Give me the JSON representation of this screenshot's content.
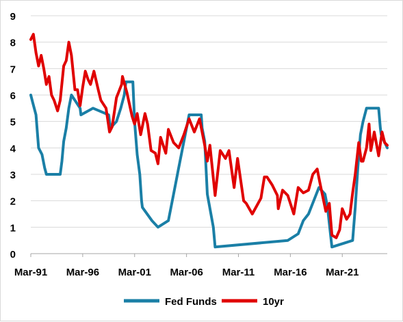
{
  "chart_data": {
    "type": "line",
    "title": "",
    "xlabel": "",
    "ylabel": "",
    "ylim": [
      0,
      9
    ],
    "xlim": [
      "1991-03",
      "2025-07"
    ],
    "y_ticks": [
      "0",
      "1",
      "2",
      "3",
      "4",
      "5",
      "6",
      "7",
      "8",
      "9"
    ],
    "x_ticks": [
      {
        "label": "Mar-91",
        "date": "1991-03"
      },
      {
        "label": "Mar-96",
        "date": "1996-03"
      },
      {
        "label": "Mar-01",
        "date": "2001-03"
      },
      {
        "label": "Mar-06",
        "date": "2006-03"
      },
      {
        "label": "Mar-11",
        "date": "2011-03"
      },
      {
        "label": "Mar-16",
        "date": "2016-03"
      },
      {
        "label": "Mar-21",
        "date": "2021-03"
      }
    ],
    "grid": "horizontal",
    "legend_position": "bottom",
    "series": [
      {
        "name": "Fed Funds",
        "color": "#1a7fa6",
        "points": [
          [
            "1991-03",
            6.0
          ],
          [
            "1991-05",
            5.75
          ],
          [
            "1991-09",
            5.25
          ],
          [
            "1991-12",
            4.0
          ],
          [
            "1992-04",
            3.75
          ],
          [
            "1992-07",
            3.25
          ],
          [
            "1992-09",
            3.0
          ],
          [
            "1993-06",
            3.0
          ],
          [
            "1994-01",
            3.0
          ],
          [
            "1994-03",
            3.5
          ],
          [
            "1994-05",
            4.25
          ],
          [
            "1994-08",
            4.75
          ],
          [
            "1994-11",
            5.5
          ],
          [
            "1995-02",
            6.0
          ],
          [
            "1995-07",
            5.75
          ],
          [
            "1995-12",
            5.5
          ],
          [
            "1996-01",
            5.25
          ],
          [
            "1997-03",
            5.5
          ],
          [
            "1998-09",
            5.25
          ],
          [
            "1998-11",
            4.75
          ],
          [
            "1999-06",
            5.0
          ],
          [
            "1999-11",
            5.5
          ],
          [
            "2000-03",
            6.0
          ],
          [
            "2000-05",
            6.5
          ],
          [
            "2001-01",
            6.5
          ],
          [
            "2001-03",
            5.0
          ],
          [
            "2001-06",
            3.75
          ],
          [
            "2001-09",
            3.0
          ],
          [
            "2001-11",
            2.0
          ],
          [
            "2001-12",
            1.75
          ],
          [
            "2002-11",
            1.25
          ],
          [
            "2003-06",
            1.0
          ],
          [
            "2004-06",
            1.25
          ],
          [
            "2004-12",
            2.25
          ],
          [
            "2005-06",
            3.25
          ],
          [
            "2005-12",
            4.25
          ],
          [
            "2006-06",
            5.25
          ],
          [
            "2007-08",
            5.25
          ],
          [
            "2007-09",
            4.75
          ],
          [
            "2007-12",
            4.25
          ],
          [
            "2008-03",
            2.25
          ],
          [
            "2008-10",
            1.0
          ],
          [
            "2008-12",
            0.25
          ],
          [
            "2015-12",
            0.5
          ],
          [
            "2016-12",
            0.75
          ],
          [
            "2017-06",
            1.25
          ],
          [
            "2017-12",
            1.5
          ],
          [
            "2018-06",
            2.0
          ],
          [
            "2018-12",
            2.5
          ],
          [
            "2019-07",
            2.25
          ],
          [
            "2019-10",
            1.75
          ],
          [
            "2020-03",
            0.25
          ],
          [
            "2022-03",
            0.5
          ],
          [
            "2022-06",
            1.75
          ],
          [
            "2022-09",
            3.25
          ],
          [
            "2022-12",
            4.5
          ],
          [
            "2023-03",
            5.0
          ],
          [
            "2023-07",
            5.5
          ],
          [
            "2024-09",
            5.5
          ],
          [
            "2024-11",
            4.75
          ],
          [
            "2024-12",
            4.5
          ],
          [
            "2025-07",
            4.0
          ]
        ]
      },
      {
        "name": "10yr",
        "color": "#e00000",
        "points": [
          [
            "1991-03",
            8.1
          ],
          [
            "1991-06",
            8.3
          ],
          [
            "1991-09",
            7.6
          ],
          [
            "1991-12",
            7.1
          ],
          [
            "1992-03",
            7.5
          ],
          [
            "1992-06",
            7.0
          ],
          [
            "1992-09",
            6.4
          ],
          [
            "1992-12",
            6.7
          ],
          [
            "1993-03",
            6.0
          ],
          [
            "1993-06",
            5.8
          ],
          [
            "1993-10",
            5.4
          ],
          [
            "1994-01",
            5.8
          ],
          [
            "1994-05",
            7.1
          ],
          [
            "1994-08",
            7.3
          ],
          [
            "1994-11",
            8.0
          ],
          [
            "1995-02",
            7.5
          ],
          [
            "1995-06",
            6.2
          ],
          [
            "1995-09",
            6.2
          ],
          [
            "1995-12",
            5.6
          ],
          [
            "1996-03",
            6.3
          ],
          [
            "1996-06",
            6.9
          ],
          [
            "1996-09",
            6.6
          ],
          [
            "1996-12",
            6.4
          ],
          [
            "1997-04",
            6.9
          ],
          [
            "1997-09",
            6.2
          ],
          [
            "1997-12",
            5.8
          ],
          [
            "1998-06",
            5.5
          ],
          [
            "1998-10",
            4.6
          ],
          [
            "1999-01",
            4.8
          ],
          [
            "1999-06",
            5.9
          ],
          [
            "1999-12",
            6.4
          ],
          [
            "2000-01",
            6.7
          ],
          [
            "2000-06",
            6.1
          ],
          [
            "2000-12",
            5.2
          ],
          [
            "2001-03",
            4.9
          ],
          [
            "2001-06",
            5.3
          ],
          [
            "2001-10",
            4.5
          ],
          [
            "2002-03",
            5.3
          ],
          [
            "2002-06",
            4.9
          ],
          [
            "2002-10",
            3.9
          ],
          [
            "2003-03",
            3.8
          ],
          [
            "2003-06",
            3.4
          ],
          [
            "2003-09",
            4.4
          ],
          [
            "2004-03",
            3.8
          ],
          [
            "2004-06",
            4.7
          ],
          [
            "2004-12",
            4.2
          ],
          [
            "2005-06",
            4.0
          ],
          [
            "2005-12",
            4.5
          ],
          [
            "2006-06",
            5.1
          ],
          [
            "2006-12",
            4.6
          ],
          [
            "2007-06",
            5.1
          ],
          [
            "2007-12",
            4.1
          ],
          [
            "2008-03",
            3.5
          ],
          [
            "2008-06",
            4.1
          ],
          [
            "2008-12",
            2.2
          ],
          [
            "2009-06",
            3.9
          ],
          [
            "2009-12",
            3.6
          ],
          [
            "2010-04",
            3.9
          ],
          [
            "2010-10",
            2.5
          ],
          [
            "2011-02",
            3.6
          ],
          [
            "2011-09",
            2.0
          ],
          [
            "2011-12",
            1.9
          ],
          [
            "2012-07",
            1.5
          ],
          [
            "2012-12",
            1.8
          ],
          [
            "2013-05",
            2.1
          ],
          [
            "2013-09",
            2.9
          ],
          [
            "2013-12",
            2.9
          ],
          [
            "2014-06",
            2.6
          ],
          [
            "2014-12",
            2.2
          ],
          [
            "2015-01",
            1.7
          ],
          [
            "2015-06",
            2.4
          ],
          [
            "2015-12",
            2.2
          ],
          [
            "2016-07",
            1.5
          ],
          [
            "2016-12",
            2.5
          ],
          [
            "2017-06",
            2.3
          ],
          [
            "2017-12",
            2.4
          ],
          [
            "2018-05",
            3.0
          ],
          [
            "2018-10",
            3.2
          ],
          [
            "2019-01",
            2.7
          ],
          [
            "2019-08",
            1.6
          ],
          [
            "2019-12",
            1.9
          ],
          [
            "2020-03",
            0.7
          ],
          [
            "2020-08",
            0.6
          ],
          [
            "2020-12",
            0.9
          ],
          [
            "2021-03",
            1.7
          ],
          [
            "2021-08",
            1.3
          ],
          [
            "2021-12",
            1.5
          ],
          [
            "2022-03",
            2.3
          ],
          [
            "2022-06",
            3.0
          ],
          [
            "2022-10",
            4.2
          ],
          [
            "2023-01",
            3.5
          ],
          [
            "2023-03",
            3.5
          ],
          [
            "2023-07",
            4.0
          ],
          [
            "2023-10",
            4.9
          ],
          [
            "2023-12",
            3.9
          ],
          [
            "2024-04",
            4.6
          ],
          [
            "2024-09",
            3.7
          ],
          [
            "2025-01",
            4.6
          ],
          [
            "2025-04",
            4.2
          ],
          [
            "2025-07",
            4.1
          ]
        ]
      }
    ]
  }
}
